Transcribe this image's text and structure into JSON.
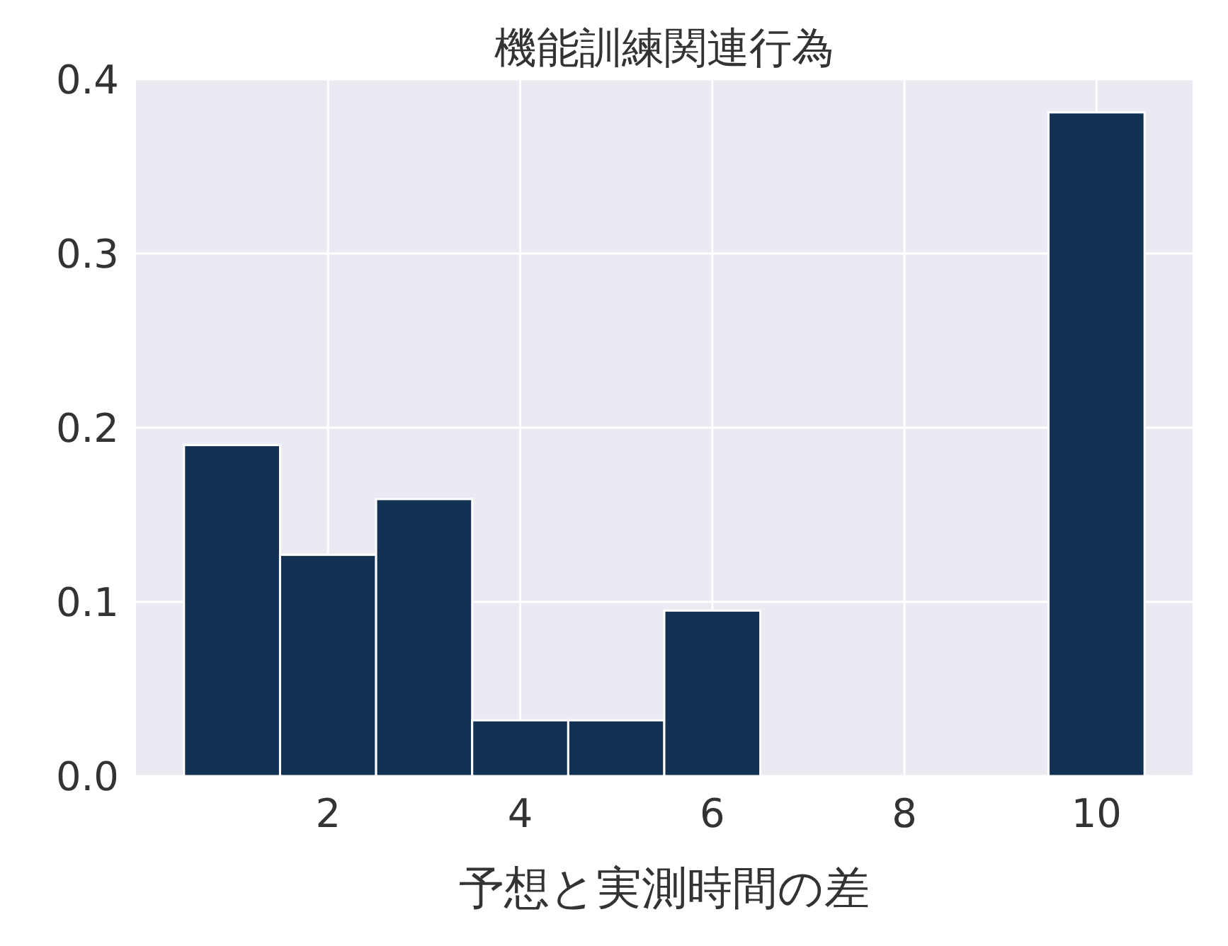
{
  "chart_data": {
    "type": "histogram",
    "title": "機能訓練関連行為",
    "xlabel": "予想と実測時間の差",
    "bins": [
      0.5,
      1.5,
      2.5,
      3.5,
      4.5,
      5.5,
      6.5,
      7.5,
      8.5,
      9.5,
      10.5
    ],
    "values": [
      0.19,
      0.127,
      0.159,
      0.032,
      0.032,
      0.095,
      0,
      0,
      0,
      0.381
    ],
    "color": "#133253",
    "xlim": [
      0,
      11
    ],
    "xticks": [
      2,
      4,
      6,
      8,
      10
    ],
    "ylim": [
      0,
      0.4
    ],
    "yticks": [
      {
        "value": 0,
        "label": "0.0"
      },
      0.1,
      0.2,
      0.3,
      0.4
    ],
    "grid": true
  }
}
